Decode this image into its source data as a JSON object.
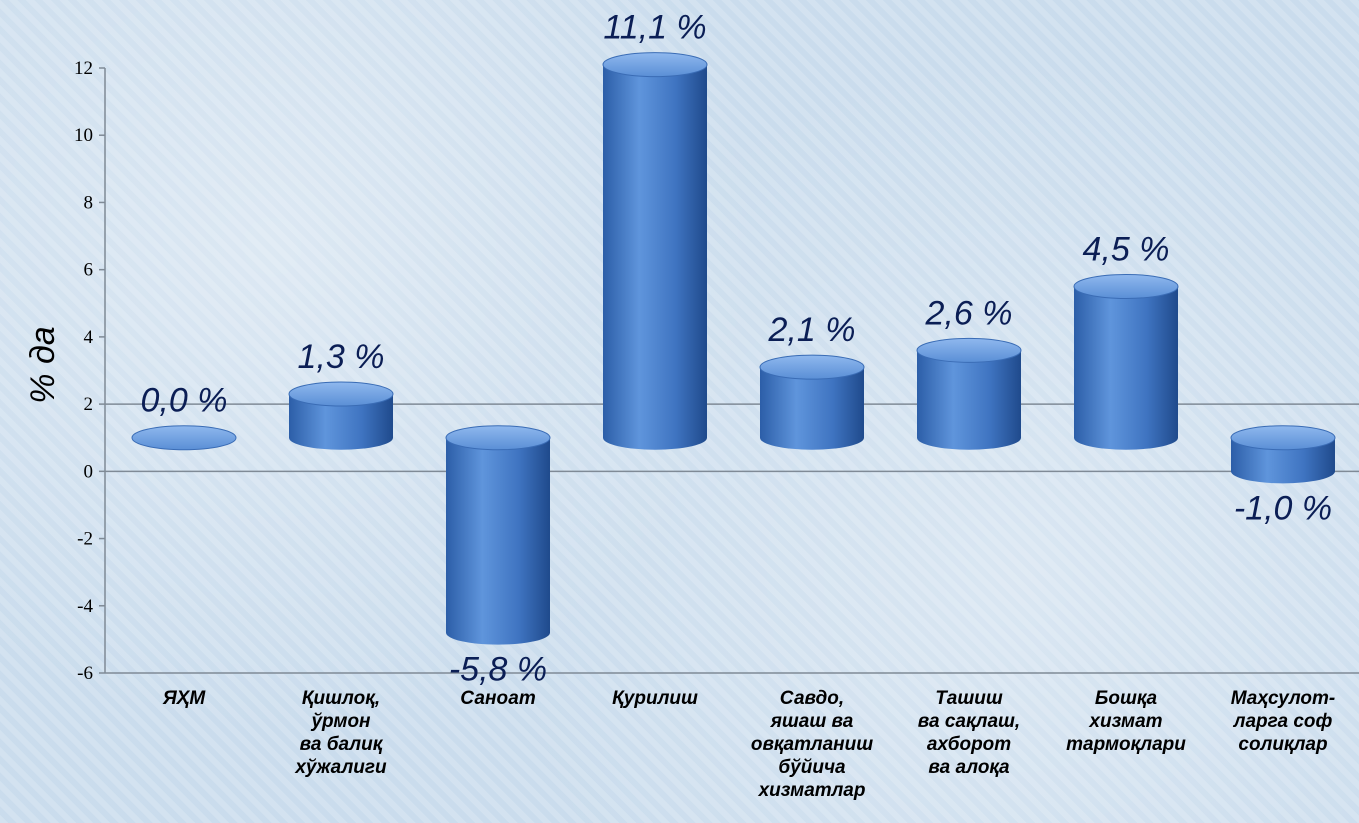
{
  "chart_data": {
    "type": "bar",
    "ylabel": "% да",
    "ylim": [
      -6,
      12
    ],
    "yticks": [
      -6,
      -4,
      -2,
      0,
      2,
      4,
      6,
      8,
      10,
      12
    ],
    "grid": false,
    "bar_style": "3d-cylinder",
    "bar_color": "#4a7fc9",
    "categories": [
      [
        "ЯҲМ"
      ],
      [
        "Қишлоқ,",
        "ўрмон",
        "ва балиқ",
        "хўжалиги"
      ],
      [
        "Саноат"
      ],
      [
        "Қурилиш"
      ],
      [
        "Савдо,",
        "яшаш ва",
        "овқатланиш",
        "бўйича",
        "хизматлар"
      ],
      [
        "Ташиш",
        "ва сақлаш,",
        "ахборот",
        "ва алоқа"
      ],
      [
        "Бошқа",
        "хизмат",
        "тармоқлари"
      ],
      [
        "Маҳсулот-",
        "ларга соф",
        "солиқлар"
      ]
    ],
    "values": [
      0.0,
      1.3,
      -5.8,
      11.1,
      2.1,
      2.6,
      4.5,
      -1.0
    ],
    "labels": [
      "0,0 %",
      "1,3 %",
      "-5,8 %",
      "11,1 %",
      "2,1 %",
      "2,6 %",
      "4,5 %",
      "-1,0 %"
    ]
  }
}
